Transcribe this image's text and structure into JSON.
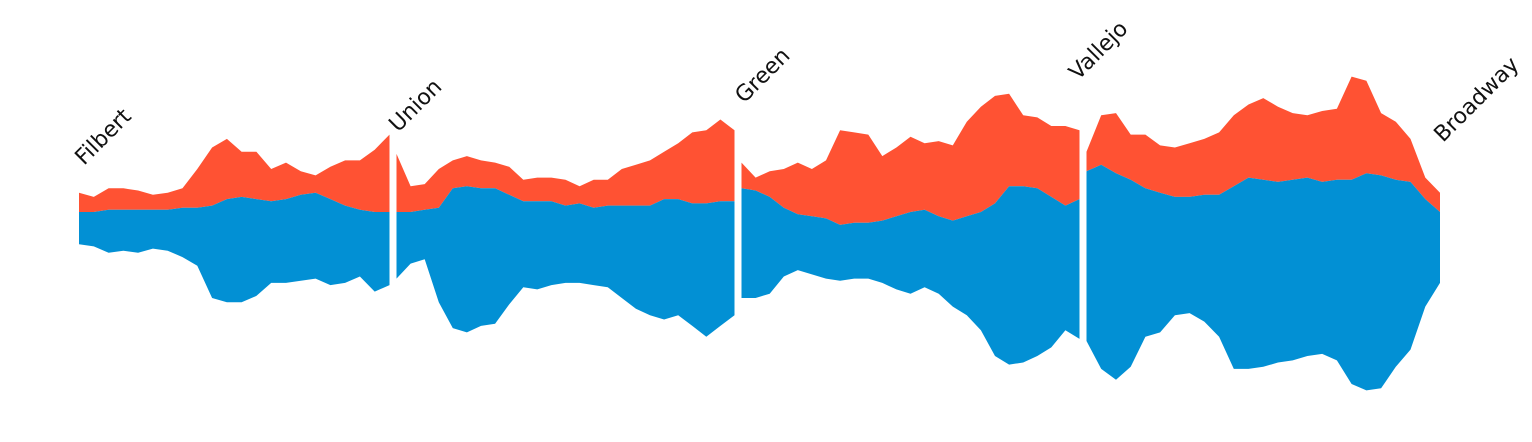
{
  "colors": {
    "upper": "#ff5233",
    "lower": "#0290d4",
    "background": "#ffffff",
    "divider": "#ffffff"
  },
  "chart_data": {
    "type": "area",
    "title": "",
    "xlabel": "",
    "ylabel": "",
    "grid": false,
    "legend": "none",
    "ylim": [
      -120,
      90
    ],
    "series": [
      {
        "segment": "Filbert",
        "upper": [
          9,
          7,
          11,
          11,
          10,
          8,
          9,
          11,
          20,
          30,
          34,
          28,
          28,
          20,
          23,
          19,
          17,
          21,
          24,
          24,
          29,
          36
        ],
        "base": [
          0,
          0,
          1,
          1,
          1,
          1,
          1,
          2,
          2,
          3,
          6,
          7,
          6,
          5,
          6,
          8,
          9,
          6,
          3,
          1,
          0,
          0
        ],
        "lower": [
          -15,
          -16,
          -19,
          -18,
          -19,
          -17,
          -18,
          -21,
          -25,
          -40,
          -42,
          -42,
          -39,
          -33,
          -33,
          -32,
          -31,
          -34,
          -33,
          -30,
          -37,
          -34
        ]
      },
      {
        "segment": "Union",
        "upper": [
          27,
          12,
          13,
          20,
          24,
          26,
          24,
          23,
          21,
          15,
          16,
          16,
          15,
          12,
          15,
          15,
          20,
          22,
          24,
          28,
          32,
          37,
          38,
          43,
          38
        ],
        "base": [
          0,
          0,
          1,
          2,
          11,
          12,
          11,
          11,
          8,
          5,
          5,
          5,
          3,
          4,
          2,
          3,
          3,
          3,
          3,
          6,
          6,
          4,
          4,
          5,
          5
        ],
        "lower": [
          -31,
          -24,
          -22,
          -42,
          -54,
          -56,
          -53,
          -52,
          -43,
          -35,
          -36,
          -34,
          -33,
          -33,
          -34,
          -35,
          -40,
          -45,
          -48,
          -50,
          -48,
          -53,
          -58,
          -53,
          -48
        ]
      },
      {
        "segment": "Green",
        "upper": [
          23,
          16,
          19,
          20,
          23,
          20,
          24,
          38,
          37,
          36,
          26,
          30,
          35,
          32,
          33,
          31,
          42,
          49,
          54,
          55,
          45,
          44,
          40,
          40,
          38
        ],
        "base": [
          11,
          10,
          7,
          2,
          -1,
          -2,
          -3,
          -6,
          -5,
          -5,
          -4,
          -2,
          0,
          1,
          -2,
          -4,
          -2,
          0,
          4,
          12,
          12,
          11,
          7,
          3,
          6
        ],
        "lower": [
          -40,
          -40,
          -38,
          -30,
          -27,
          -29,
          -31,
          -32,
          -31,
          -31,
          -33,
          -36,
          -38,
          -35,
          -38,
          -44,
          -48,
          -55,
          -67,
          -71,
          -70,
          -67,
          -63,
          -55,
          -59
        ]
      },
      {
        "segment": "Vallejo",
        "upper": [
          28,
          45,
          46,
          36,
          36,
          31,
          30,
          32,
          34,
          37,
          45,
          50,
          53,
          49,
          46,
          45,
          47,
          48,
          63,
          61,
          46,
          42,
          34,
          16,
          9
        ],
        "base": [
          19,
          22,
          18,
          15,
          11,
          9,
          7,
          7,
          8,
          8,
          12,
          16,
          15,
          14,
          15,
          16,
          14,
          15,
          15,
          18,
          17,
          15,
          14,
          6,
          0
        ],
        "lower": [
          -60,
          -73,
          -78,
          -72,
          -58,
          -56,
          -48,
          -47,
          -51,
          -58,
          -73,
          -73,
          -72,
          -70,
          -69,
          -67,
          -66,
          -69,
          -80,
          -83,
          -82,
          -72,
          -64,
          -44,
          -33
        ]
      }
    ],
    "labels": [
      "Filbert",
      "Union",
      "Green",
      "Vallejo",
      "Broadway"
    ]
  }
}
